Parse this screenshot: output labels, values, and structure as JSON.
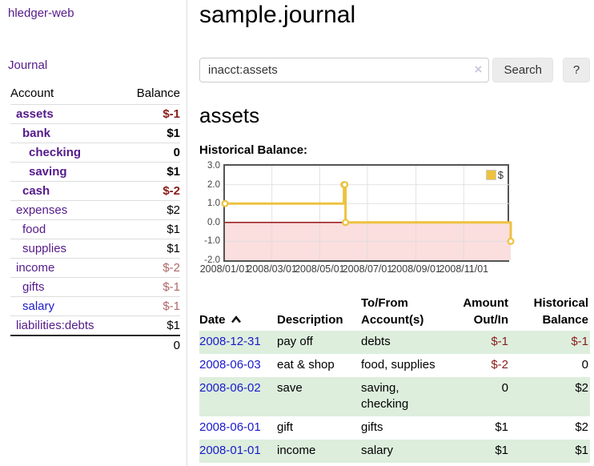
{
  "app": {
    "title": "hledger-web"
  },
  "sidebar": {
    "journal_link": "Journal",
    "accounts_table": {
      "account_header": "Account",
      "balance_header": "Balance",
      "rows": [
        {
          "name": "assets",
          "balance": "$-1",
          "depth": 1,
          "bold": true,
          "blue": false
        },
        {
          "name": "bank",
          "balance": "$1",
          "depth": 2,
          "bold": true,
          "blue": false
        },
        {
          "name": "checking",
          "balance": "0",
          "depth": 3,
          "bold": true,
          "blue": false
        },
        {
          "name": "saving",
          "balance": "$1",
          "depth": 3,
          "bold": true,
          "blue": false
        },
        {
          "name": "cash",
          "balance": "$-2",
          "depth": 2,
          "bold": true,
          "blue": false
        },
        {
          "name": "expenses",
          "balance": "$2",
          "depth": 1,
          "bold": false,
          "blue": false
        },
        {
          "name": "food",
          "balance": "$1",
          "depth": 2,
          "bold": false,
          "blue": false
        },
        {
          "name": "supplies",
          "balance": "$1",
          "depth": 2,
          "bold": false,
          "blue": false
        },
        {
          "name": "income",
          "balance": "$-2",
          "depth": 1,
          "bold": false,
          "blue": false
        },
        {
          "name": "gifts",
          "balance": "$-1",
          "depth": 2,
          "bold": false,
          "blue": false
        },
        {
          "name": "salary",
          "balance": "$-1",
          "depth": 2,
          "bold": false,
          "blue": true
        },
        {
          "name": "liabilities:debts",
          "balance": "$1",
          "depth": 1,
          "bold": false,
          "blue": false
        }
      ],
      "total": "0"
    }
  },
  "header": {
    "title": "sample.journal"
  },
  "search": {
    "value": "inacct:assets",
    "placeholder": "",
    "clear_icon": "×",
    "button_label": "Search",
    "help_label": "?"
  },
  "account_page": {
    "heading": "assets",
    "chart_title": "Historical Balance:"
  },
  "chart_data": {
    "type": "line",
    "title": "Historical Balance:",
    "step": true,
    "series": [
      {
        "name": "$",
        "color": "#edc240",
        "points": [
          [
            "2008-01-01",
            1
          ],
          [
            "2008-06-01",
            2
          ],
          [
            "2008-06-02",
            2
          ],
          [
            "2008-06-03",
            0
          ],
          [
            "2008-12-31",
            -1
          ]
        ]
      }
    ],
    "xlim": [
      "2008-01-01",
      "2008-12-31"
    ],
    "ylim": [
      -2,
      3
    ],
    "yticks": [
      "3.0",
      "2.0",
      "1.0",
      "0.0",
      "-1.0",
      "-2.0"
    ],
    "ytick_values": [
      3,
      2,
      1,
      0,
      -1,
      -2
    ],
    "xticks": [
      "2008/01/01",
      "2008/03/01",
      "2008/05/01",
      "2008/07/01",
      "2008/09/01",
      "2008/11/01"
    ],
    "grid": true,
    "legend_position": "top-right",
    "negative_region_fill": "#fbdede",
    "zero_line_color": "#8b0000",
    "gridline_color": "#dddddd"
  },
  "register_table": {
    "headers": {
      "date": "Date",
      "description": "Description",
      "account": "To/From Account(s)",
      "amount": "Amount Out/In",
      "balance": "Historical Balance"
    },
    "rows": [
      {
        "date": "2008-12-31",
        "description": "pay off",
        "accounts": "debts",
        "amount": "$-1",
        "balance": "$-1"
      },
      {
        "date": "2008-06-03",
        "description": "eat & shop",
        "accounts": "food, supplies",
        "amount": "$-2",
        "balance": "0"
      },
      {
        "date": "2008-06-02",
        "description": "save",
        "accounts": "saving, checking",
        "amount": "0",
        "balance": "$2"
      },
      {
        "date": "2008-06-01",
        "description": "gift",
        "accounts": "gifts",
        "amount": "$1",
        "balance": "$2"
      },
      {
        "date": "2008-01-01",
        "description": "income",
        "accounts": "salary",
        "amount": "$1",
        "balance": "$1"
      }
    ]
  },
  "icons": {
    "sort_ascending": "chevron-up",
    "clear_search": "×"
  },
  "colors": {
    "link_purple": "#551a8b",
    "link_blue": "#1a1acc",
    "negative": "#8b1a1a",
    "negative_muted": "#b06868",
    "row_stripe_green": "#ddeedd",
    "chart_line": "#edc240",
    "chart_border": "#545454"
  }
}
